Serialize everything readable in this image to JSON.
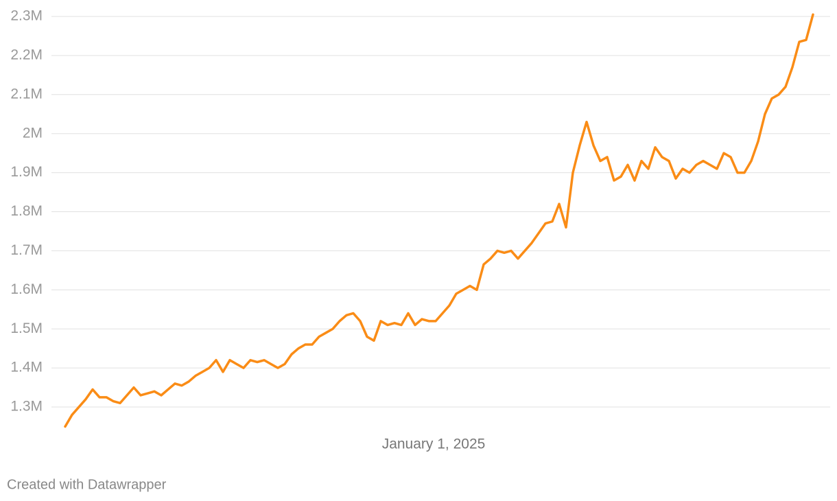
{
  "chart_data": {
    "type": "line",
    "categories": [
      null,
      null,
      null,
      null,
      null,
      null,
      null,
      null,
      null,
      null,
      null,
      null,
      null,
      null,
      null,
      null,
      null,
      null,
      null,
      null,
      null,
      null,
      null,
      null,
      null,
      null,
      null,
      null,
      null,
      null,
      null,
      null,
      null,
      null,
      null,
      null,
      null,
      null,
      null,
      null,
      null,
      null,
      null,
      null,
      null,
      null,
      null,
      null,
      null,
      null,
      null,
      null,
      null,
      null,
      "January 1, 2025",
      null,
      null,
      null,
      null,
      null,
      null,
      null,
      null,
      null,
      null,
      null,
      null,
      null,
      null,
      null,
      null,
      null,
      null,
      null,
      null,
      null,
      null,
      null,
      null,
      null,
      null,
      null,
      null,
      null,
      null,
      null,
      null,
      null,
      null,
      null,
      null,
      null,
      null,
      null,
      null,
      null,
      null,
      null,
      null,
      null,
      null,
      null,
      null,
      null,
      null,
      null,
      null,
      null,
      null,
      null
    ],
    "series": [
      {
        "color": "#fa8c16",
        "values": [
          1250000,
          1280000,
          1300000,
          1320000,
          1345000,
          1325000,
          1325000,
          1315000,
          1310000,
          1330000,
          1350000,
          1330000,
          1335000,
          1340000,
          1330000,
          1345000,
          1360000,
          1355000,
          1365000,
          1380000,
          1390000,
          1400000,
          1420000,
          1390000,
          1420000,
          1410000,
          1400000,
          1420000,
          1415000,
          1420000,
          1410000,
          1400000,
          1410000,
          1435000,
          1450000,
          1460000,
          1460000,
          1480000,
          1490000,
          1500000,
          1520000,
          1535000,
          1540000,
          1520000,
          1480000,
          1470000,
          1520000,
          1510000,
          1515000,
          1510000,
          1540000,
          1510000,
          1525000,
          1520000,
          1520000,
          1540000,
          1560000,
          1590000,
          1600000,
          1610000,
          1600000,
          1665000,
          1680000,
          1700000,
          1695000,
          1700000,
          1680000,
          1700000,
          1720000,
          1745000,
          1770000,
          1775000,
          1820000,
          1760000,
          1900000,
          1970000,
          2030000,
          1970000,
          1930000,
          1940000,
          1880000,
          1890000,
          1920000,
          1880000,
          1930000,
          1910000,
          1965000,
          1940000,
          1930000,
          1885000,
          1910000,
          1900000,
          1920000,
          1930000,
          1920000,
          1910000,
          1950000,
          1940000,
          1900000,
          1900000,
          1930000,
          1980000,
          2050000,
          2090000,
          2100000,
          2120000,
          2170000,
          2235000,
          2240000,
          2305000
        ]
      }
    ],
    "ylim": [
      1240000,
      2310000
    ],
    "yticks": [
      {
        "value": 1300000,
        "label": "1.3M"
      },
      {
        "value": 1400000,
        "label": "1.4M"
      },
      {
        "value": 1500000,
        "label": "1.5M"
      },
      {
        "value": 1600000,
        "label": "1.6M"
      },
      {
        "value": 1700000,
        "label": "1.7M"
      },
      {
        "value": 1800000,
        "label": "1.8M"
      },
      {
        "value": 1900000,
        "label": "1.9M"
      },
      {
        "value": 2000000,
        "label": "2M"
      },
      {
        "value": 2100000,
        "label": "2.1M"
      },
      {
        "value": 2200000,
        "label": "2.2M"
      },
      {
        "value": 2300000,
        "label": "2.3M"
      }
    ],
    "grid": true,
    "footer": "Created with Datawrapper"
  }
}
